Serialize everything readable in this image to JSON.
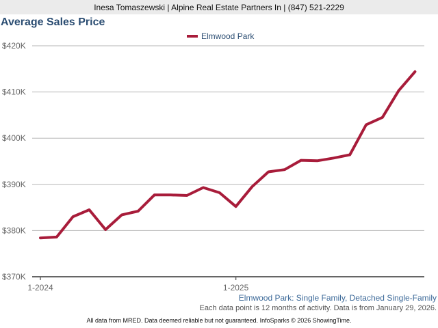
{
  "header": {
    "agent_line": "Inesa Tomaszewski | Alpine Real Estate Partners In | (847) 521-2229"
  },
  "chart_title": "Average Sales Price",
  "legend": [
    {
      "label": "Elmwood Park",
      "color": "#a81c3a"
    }
  ],
  "subtitle": "Elmwood Park: Single Family, Detached Single-Family",
  "note": "Each data point is 12 months of activity. Data is from January 29, 2026.",
  "footer": "All data from MRED. Data deemed reliable but not guaranteed. InfoSparks © 2026 ShowingTime.",
  "chart_data": {
    "type": "line",
    "title": "Average Sales Price",
    "xlabel": "",
    "ylabel": "",
    "ylim": [
      370,
      420
    ],
    "y_unit": "$K",
    "y_ticks": [
      "$370K",
      "$380K",
      "$390K",
      "$400K",
      "$410K",
      "$420K"
    ],
    "x_tick_labels": [
      {
        "label": "1-2024",
        "index": 0
      },
      {
        "label": "1-2025",
        "index": 12
      }
    ],
    "grid": true,
    "legend_position": "top",
    "x": [
      "1-2024",
      "2-2024",
      "3-2024",
      "4-2024",
      "5-2024",
      "6-2024",
      "7-2024",
      "8-2024",
      "9-2024",
      "10-2024",
      "11-2024",
      "12-2024",
      "1-2025",
      "2-2025",
      "3-2025",
      "4-2025",
      "5-2025",
      "6-2025",
      "7-2025",
      "8-2025",
      "9-2025",
      "10-2025",
      "11-2025",
      "12-2025"
    ],
    "series": [
      {
        "name": "Elmwood Park",
        "color": "#a81c3a",
        "values": [
          378.4,
          378.6,
          383.0,
          384.5,
          380.2,
          383.4,
          384.2,
          387.7,
          387.7,
          387.6,
          389.3,
          388.2,
          385.2,
          389.5,
          392.7,
          393.2,
          395.2,
          395.1,
          395.7,
          396.4,
          402.9,
          404.5,
          410.3,
          414.4
        ]
      }
    ]
  }
}
